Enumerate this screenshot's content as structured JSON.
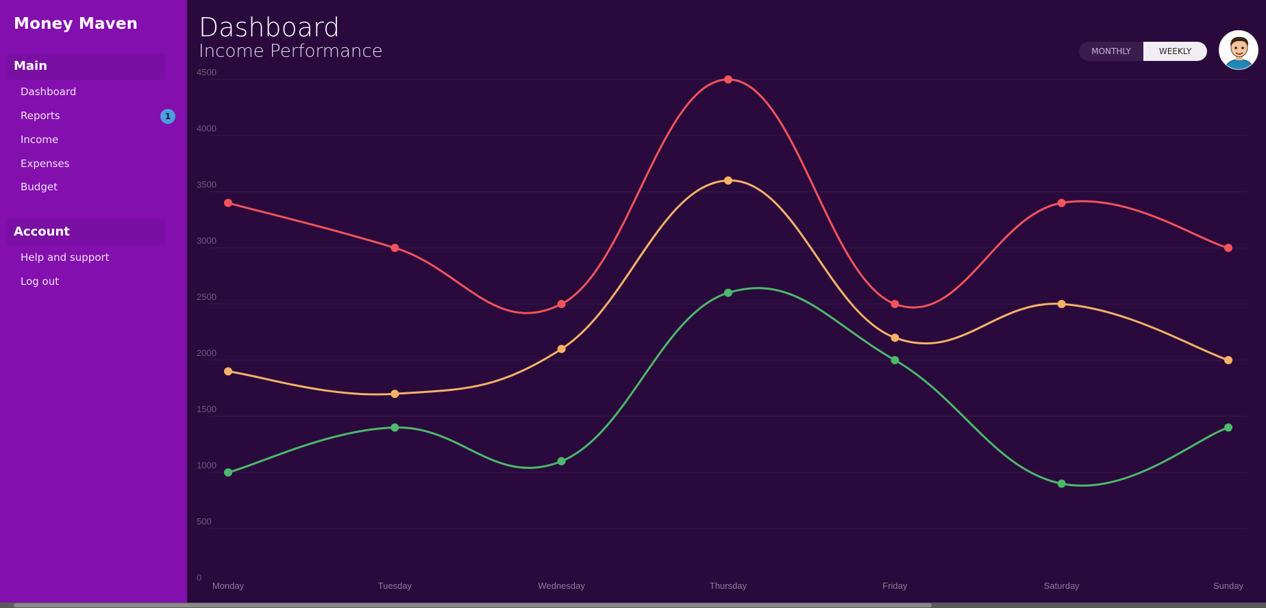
{
  "app": {
    "name": "Money Maven"
  },
  "sidebar": {
    "sections": [
      {
        "title": "Main",
        "items": [
          {
            "label": "Dashboard"
          },
          {
            "label": "Reports",
            "badge": "1"
          },
          {
            "label": "Income"
          },
          {
            "label": "Expenses"
          },
          {
            "label": "Budget"
          }
        ]
      },
      {
        "title": "Account",
        "items": [
          {
            "label": "Help and support"
          },
          {
            "label": "Log out"
          }
        ]
      }
    ]
  },
  "header": {
    "title": "Dashboard",
    "subtitle": "Income Performance",
    "toggle": {
      "monthly": "MONTHLY",
      "weekly": "WEEKLY",
      "selected": "WEEKLY"
    },
    "avatar_icon": "cartoon-user-avatar"
  },
  "colors": {
    "sidebar": "#830fae",
    "background": "#2a0a3c",
    "series_red": "#f2545b",
    "series_orange": "#f7b267",
    "series_green": "#4cb96c",
    "badge": "#4a9fdc"
  },
  "chart_data": {
    "type": "line",
    "categories": [
      "Monday",
      "Tuesday",
      "Wednesday",
      "Thursday",
      "Friday",
      "Saturday",
      "Sunday"
    ],
    "y_ticks": [
      "0",
      "500",
      "1000",
      "1500",
      "2000",
      "2500",
      "3000",
      "3500",
      "4000",
      "4500"
    ],
    "ylim": [
      0,
      4500
    ],
    "grid": true,
    "smooth": true,
    "series": [
      {
        "color": "#f2545b",
        "values": [
          3400,
          3000,
          2500,
          4500,
          2500,
          3400,
          3000
        ]
      },
      {
        "color": "#f7b267",
        "values": [
          1900,
          1700,
          2100,
          3600,
          2200,
          2500,
          2000
        ]
      },
      {
        "color": "#4cb96c",
        "values": [
          1000,
          1400,
          1100,
          2600,
          2000,
          900,
          1400
        ]
      }
    ]
  }
}
